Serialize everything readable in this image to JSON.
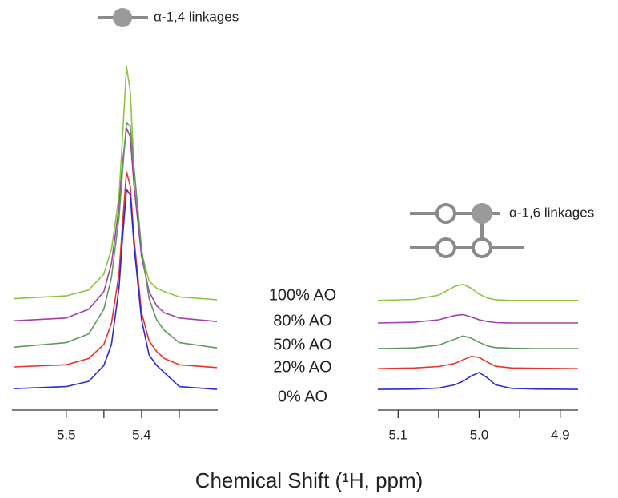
{
  "chart_data": {
    "type": "line",
    "xlabel": "Chemical Shift (¹H, ppm)",
    "ylim": [
      0,
      100
    ],
    "panels": [
      {
        "annotation": "α-1,4 linkages",
        "xlim": [
          5.572,
          5.299
        ],
        "xticks": [
          5.5,
          5.4
        ],
        "minor_xticks": [
          5.45,
          5.35
        ],
        "x": [
          5.57,
          5.5,
          5.47,
          5.45,
          5.44,
          5.43,
          5.425,
          5.42,
          5.415,
          5.41,
          5.4,
          5.39,
          5.38,
          5.37,
          5.35,
          5.3
        ]
      },
      {
        "annotation": "α-1,6 linkages",
        "xlim": [
          5.125,
          4.878
        ],
        "xticks": [
          5.1,
          {
            "value": 5,
            "label": "5.0"
          },
          4.9
        ],
        "minor_xticks": [
          5.05,
          4.95
        ],
        "x": [
          5.125,
          5.08,
          5.05,
          5.03,
          5.02,
          5.01,
          5.0,
          4.99,
          4.98,
          4.96,
          4.93,
          4.878
        ]
      }
    ],
    "series": [
      {
        "name": "100% AO",
        "color": "#8cc63f",
        "values": [
          [
            31,
            31.8,
            33.5,
            38,
            45,
            60,
            78,
            97,
            90,
            68,
            44,
            36,
            34,
            33,
            31.5,
            30.7
          ],
          [
            30.5,
            30.8,
            32,
            34.5,
            35.1,
            34,
            32.3,
            31.2,
            30.7,
            30.5,
            30.5,
            30.5
          ]
        ]
      },
      {
        "name": "80% AO",
        "color": "#a43ea8",
        "values": [
          [
            24.7,
            25.5,
            28,
            33,
            41,
            57,
            70,
            79.5,
            77,
            63,
            43,
            33,
            29,
            27,
            25.5,
            24.5
          ],
          [
            24.1,
            24.3,
            25,
            26.2,
            26.5,
            25.8,
            25,
            24.5,
            24.2,
            24.1,
            24.1,
            24.1
          ]
        ]
      },
      {
        "name": "50% AO",
        "color": "#5e9a5e",
        "values": [
          [
            17.2,
            18.5,
            21,
            28,
            37,
            54,
            68,
            81,
            80,
            68,
            45,
            31,
            25,
            22,
            18.5,
            17
          ],
          [
            16.8,
            17,
            17.8,
            19.5,
            20.4,
            19.8,
            18.6,
            17.6,
            17.1,
            16.9,
            16.8,
            16.8
          ]
        ]
      },
      {
        "name": "20% AO",
        "color": "#e8322e",
        "values": [
          [
            11.6,
            12.2,
            14,
            18,
            24,
            38,
            53,
            67,
            63,
            48,
            27,
            19,
            16,
            14,
            12.2,
            11.4
          ],
          [
            11.1,
            11.3,
            11.7,
            12.6,
            13.6,
            14.6,
            14.3,
            13,
            11.8,
            11.3,
            11.2,
            11.1
          ]
        ]
      },
      {
        "name": "0% AO",
        "color": "#2b2bd6",
        "values": [
          [
            5.4,
            6,
            7.5,
            12,
            18,
            34,
            49,
            62,
            60.5,
            46,
            25,
            15,
            12,
            10,
            6,
            5.2
          ],
          [
            5.2,
            5.3,
            5.6,
            6.5,
            7.5,
            9,
            10,
            8.5,
            6.5,
            5.5,
            5.3,
            5.2
          ]
        ]
      }
    ]
  }
}
